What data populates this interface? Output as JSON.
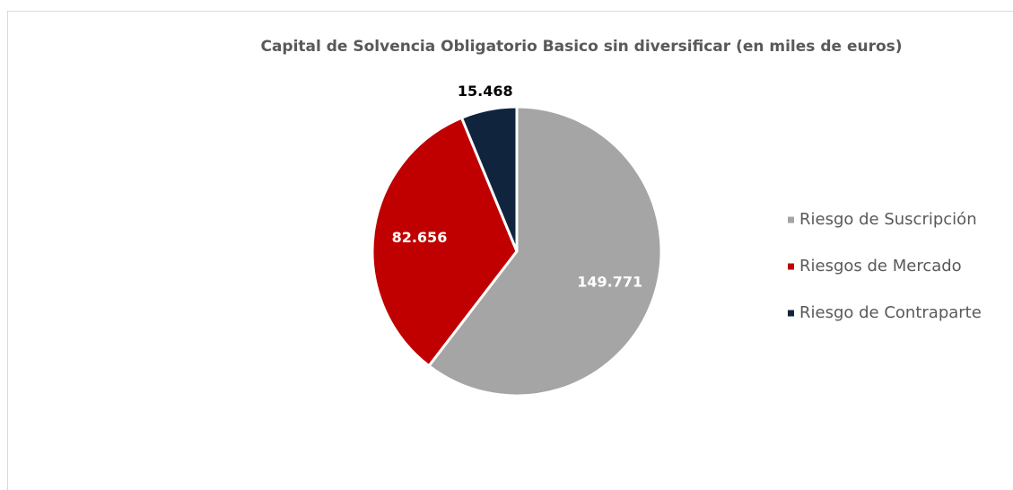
{
  "chart_data": {
    "type": "pie",
    "title": "Capital de Solvencia Obligatorio Basico sin diversificar (en miles de euros)",
    "categories": [
      "Riesgo de Suscripción",
      "Riesgos de Mercado",
      "Riesgo de Contraparte"
    ],
    "values": [
      149771,
      82656,
      15468
    ],
    "value_labels": [
      "149.771",
      "82.656",
      "15.468"
    ],
    "colors": [
      "#a5a5a5",
      "#c00000",
      "#10243e"
    ],
    "legend": "right"
  }
}
